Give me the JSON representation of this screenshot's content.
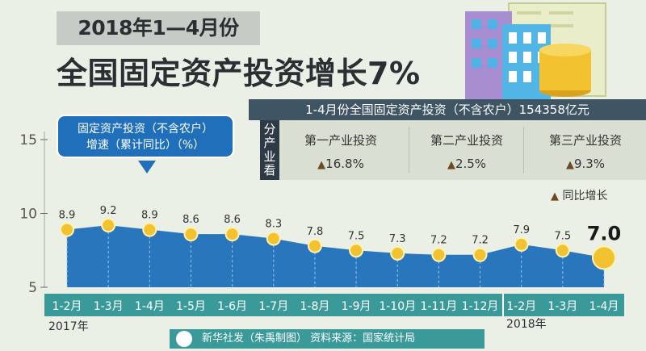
{
  "header": {
    "period_title": "2018年1—4月份",
    "main_title": "全国固定资产投资增长7%"
  },
  "summary": {
    "text": "1-4月份全国固定资产投资（不含农户）154358亿元"
  },
  "industry": {
    "side_label": [
      "分",
      "产",
      "业",
      "看"
    ],
    "items": [
      {
        "name": "第一产业投资",
        "value": "16.8%"
      },
      {
        "name": "第二产业投资",
        "value": "2.5%"
      },
      {
        "name": "第三产业投资",
        "value": "9.3%"
      }
    ],
    "triangle": "▲",
    "legend": "同比增长"
  },
  "callout": {
    "line1": "固定资产投资（不含农户）",
    "line2": "增速（累计同比）（%）"
  },
  "footer": {
    "credit": "新华社发（朱禹制图）   资料来源：国家统计局"
  },
  "years": {
    "y2017": "2017年",
    "y2018": "2018年"
  },
  "colors": {
    "area": "#1f6fba",
    "summary_bar": "#3f5563",
    "x_label_bg": "#3a9a9a",
    "marker": "#f2c230",
    "triangle": "#6d4a23"
  },
  "chart_data": {
    "type": "area",
    "categories": [
      "1-2月",
      "1-3月",
      "1-4月",
      "1-5月",
      "1-6月",
      "1-7月",
      "1-8月",
      "1-9月",
      "1-10月",
      "1-11月",
      "1-12月",
      "1-2月",
      "1-3月",
      "1-4月"
    ],
    "values": [
      8.9,
      9.2,
      8.9,
      8.6,
      8.6,
      8.3,
      7.8,
      7.5,
      7.3,
      7.2,
      7.2,
      7.9,
      7.5,
      7.0
    ],
    "value_labels": [
      "8.9",
      "9.2",
      "8.9",
      "8.6",
      "8.6",
      "8.3",
      "7.8",
      "7.5",
      "7.3",
      "7.2",
      "7.2",
      "7.9",
      "7.5",
      "7.0"
    ],
    "y_ticks": [
      "15",
      "10",
      "5"
    ],
    "ylim": [
      5,
      15
    ],
    "grid": false
  }
}
